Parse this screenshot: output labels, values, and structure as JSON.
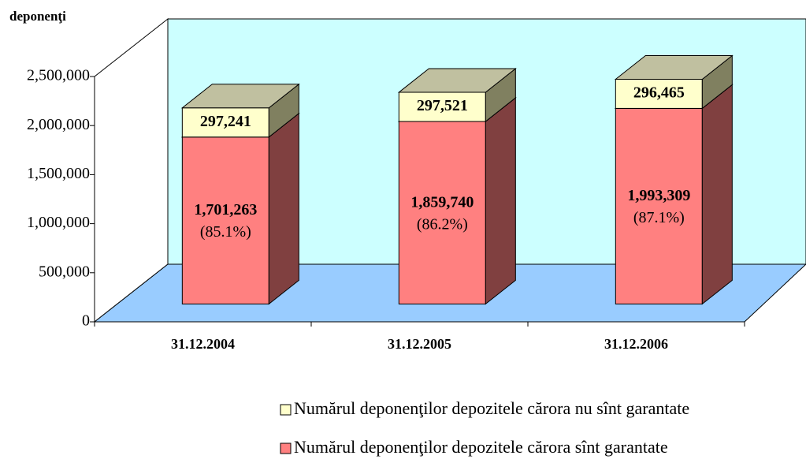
{
  "chart_data": {
    "type": "bar3d_stacked",
    "y_label": "deponenţi",
    "categories": [
      "31.12.2004",
      "31.12.2005",
      "31.12.2006"
    ],
    "series": [
      {
        "name": "Numărul deponenţilor depozitele cărora sînt garantate",
        "color": "#FF8080",
        "side_color": "#804040",
        "top_color": "#C08080",
        "values": [
          1701263,
          1859740,
          1993309
        ],
        "value_labels": [
          "1,701,263",
          "1,859,740",
          "1,993,309"
        ],
        "share_labels": [
          "(85.1%)",
          "(86.2%)",
          "(87.1%)"
        ]
      },
      {
        "name": "Numărul deponenţilor depozitele cărora nu sînt garantate",
        "color": "#FFFFCC",
        "side_color": "#808060",
        "top_color": "#C0C0A0",
        "values": [
          297241,
          297521,
          296465
        ],
        "value_labels": [
          "297,241",
          "297,521",
          "296,465"
        ]
      }
    ],
    "ylim": [
      0,
      2500000
    ],
    "yticks": [
      0,
      {
        "value": 500000,
        "label": "500,000"
      },
      {
        "value": 1000000,
        "label": "1,000,000"
      },
      {
        "value": 1500000,
        "label": "1,500,000"
      },
      {
        "value": 2000000,
        "label": "2,000,000"
      },
      {
        "value": 2500000,
        "label": "2,500,000"
      }
    ],
    "wall_color": "#CCFFFF",
    "floor_color": "#99CCFF"
  }
}
